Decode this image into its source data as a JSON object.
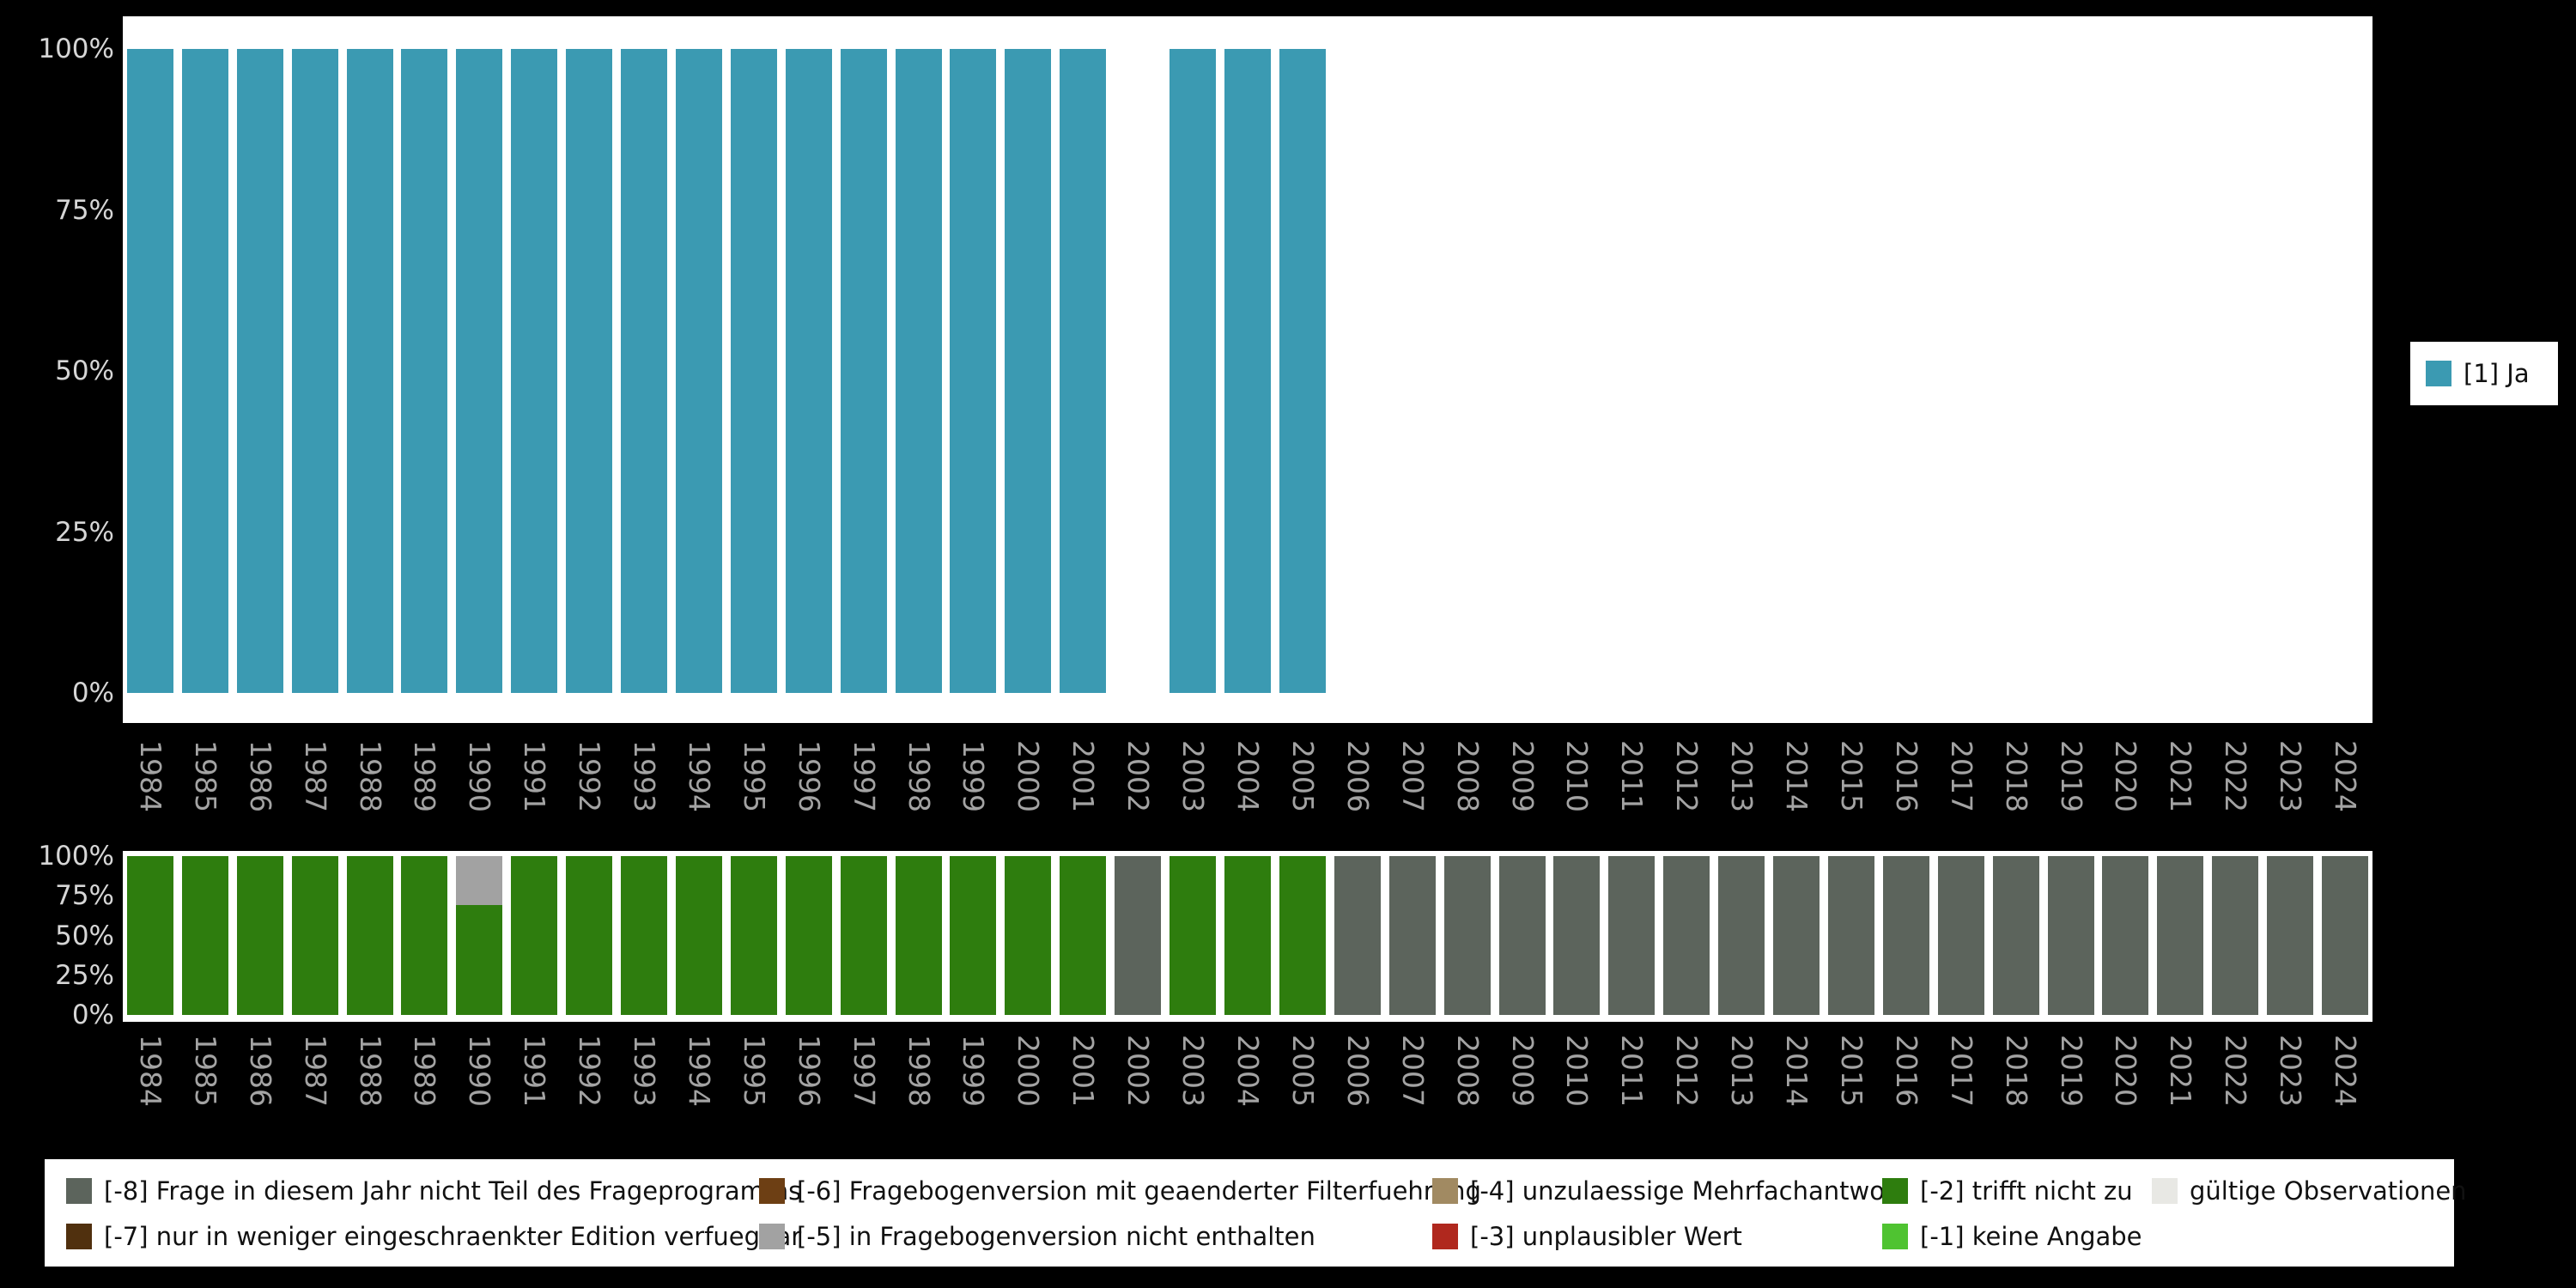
{
  "axis": {
    "y_ticks": [
      "100%",
      "75%",
      "50%",
      "25%",
      "0%"
    ]
  },
  "top_legend": {
    "label": "[1] Ja",
    "color": "#3b9ab2"
  },
  "missing_legend": {
    "columns": [
      [
        {
          "key": "m8",
          "label": "[-8] Frage in diesem Jahr nicht Teil des Frageprogramms",
          "color": "#5c645c"
        },
        {
          "key": "m7",
          "label": "[-7] nur in weniger eingeschraenkter Edition verfuegbar",
          "color": "#50300e"
        }
      ],
      [
        {
          "key": "m6",
          "label": "[-6] Fragebogenversion mit geaenderter Filterfuehrung",
          "color": "#6d3f14"
        },
        {
          "key": "m5",
          "label": "[-5] in Fragebogenversion nicht enthalten",
          "color": "#a2a2a2"
        }
      ],
      [
        {
          "key": "m4",
          "label": "[-4] unzulaessige Mehrfachantwort",
          "color": "#a18a62"
        },
        {
          "key": "m3",
          "label": "[-3] unplausibler Wert",
          "color": "#b0281e"
        }
      ],
      [
        {
          "key": "m2",
          "label": "[-2] trifft nicht zu",
          "color": "#2e7d0e"
        },
        {
          "key": "m1",
          "label": "[-1] keine Angabe",
          "color": "#4fc331"
        }
      ],
      [
        {
          "key": "valid",
          "label": "gültige Observationen",
          "color": "#e8e8e4"
        }
      ]
    ]
  },
  "chart_data": [
    {
      "type": "bar",
      "title": "",
      "categories": [
        1984,
        1985,
        1986,
        1987,
        1988,
        1989,
        1990,
        1991,
        1992,
        1993,
        1994,
        1995,
        1996,
        1997,
        1998,
        1999,
        2000,
        2001,
        2002,
        2003,
        2004,
        2005,
        2006,
        2007,
        2008,
        2009,
        2010,
        2011,
        2012,
        2013,
        2014,
        2015,
        2016,
        2017,
        2018,
        2019,
        2020,
        2021,
        2022,
        2023,
        2024
      ],
      "series": [
        {
          "name": "[1] Ja",
          "color": "#3b9ab2",
          "values": [
            100,
            100,
            100,
            100,
            100,
            100,
            100,
            100,
            100,
            100,
            100,
            100,
            100,
            100,
            100,
            100,
            100,
            100,
            null,
            100,
            100,
            100,
            null,
            null,
            null,
            null,
            null,
            null,
            null,
            null,
            null,
            null,
            null,
            null,
            null,
            null,
            null,
            null,
            null,
            null,
            null
          ]
        }
      ],
      "xlabel": "",
      "ylabel": "",
      "ylim": [
        0,
        100
      ],
      "y_tick_labels": [
        "0%",
        "25%",
        "50%",
        "75%",
        "100%"
      ],
      "grid": false,
      "legend_position": "right"
    },
    {
      "type": "bar",
      "stacked": true,
      "title": "",
      "categories": [
        1984,
        1985,
        1986,
        1987,
        1988,
        1989,
        1990,
        1991,
        1992,
        1993,
        1994,
        1995,
        1996,
        1997,
        1998,
        1999,
        2000,
        2001,
        2002,
        2003,
        2004,
        2005,
        2006,
        2007,
        2008,
        2009,
        2010,
        2011,
        2012,
        2013,
        2014,
        2015,
        2016,
        2017,
        2018,
        2019,
        2020,
        2021,
        2022,
        2023,
        2024
      ],
      "series": [
        {
          "name": "[-2] trifft nicht zu",
          "color": "#2e7d0e",
          "values": [
            100,
            100,
            100,
            100,
            100,
            100,
            69,
            100,
            100,
            100,
            100,
            100,
            100,
            100,
            100,
            100,
            100,
            100,
            0,
            100,
            100,
            100,
            0,
            0,
            0,
            0,
            0,
            0,
            0,
            0,
            0,
            0,
            0,
            0,
            0,
            0,
            0,
            0,
            0,
            0,
            0
          ]
        },
        {
          "name": "[-5] in Fragebogenversion nicht enthalten",
          "color": "#a2a2a2",
          "values": [
            0,
            0,
            0,
            0,
            0,
            0,
            31,
            0,
            0,
            0,
            0,
            0,
            0,
            0,
            0,
            0,
            0,
            0,
            0,
            0,
            0,
            0,
            0,
            0,
            0,
            0,
            0,
            0,
            0,
            0,
            0,
            0,
            0,
            0,
            0,
            0,
            0,
            0,
            0,
            0,
            0
          ]
        },
        {
          "name": "[-8] Frage in diesem Jahr nicht Teil des Frageprogramms",
          "color": "#5c645c",
          "values": [
            0,
            0,
            0,
            0,
            0,
            0,
            0,
            0,
            0,
            0,
            0,
            0,
            0,
            0,
            0,
            0,
            0,
            0,
            100,
            0,
            0,
            0,
            100,
            100,
            100,
            100,
            100,
            100,
            100,
            100,
            100,
            100,
            100,
            100,
            100,
            100,
            100,
            100,
            100,
            100,
            100
          ]
        }
      ],
      "xlabel": "",
      "ylabel": "",
      "ylim": [
        0,
        100
      ],
      "y_tick_labels": [
        "0%",
        "25%",
        "50%",
        "75%",
        "100%"
      ],
      "grid": false,
      "legend_position": "bottom"
    }
  ]
}
